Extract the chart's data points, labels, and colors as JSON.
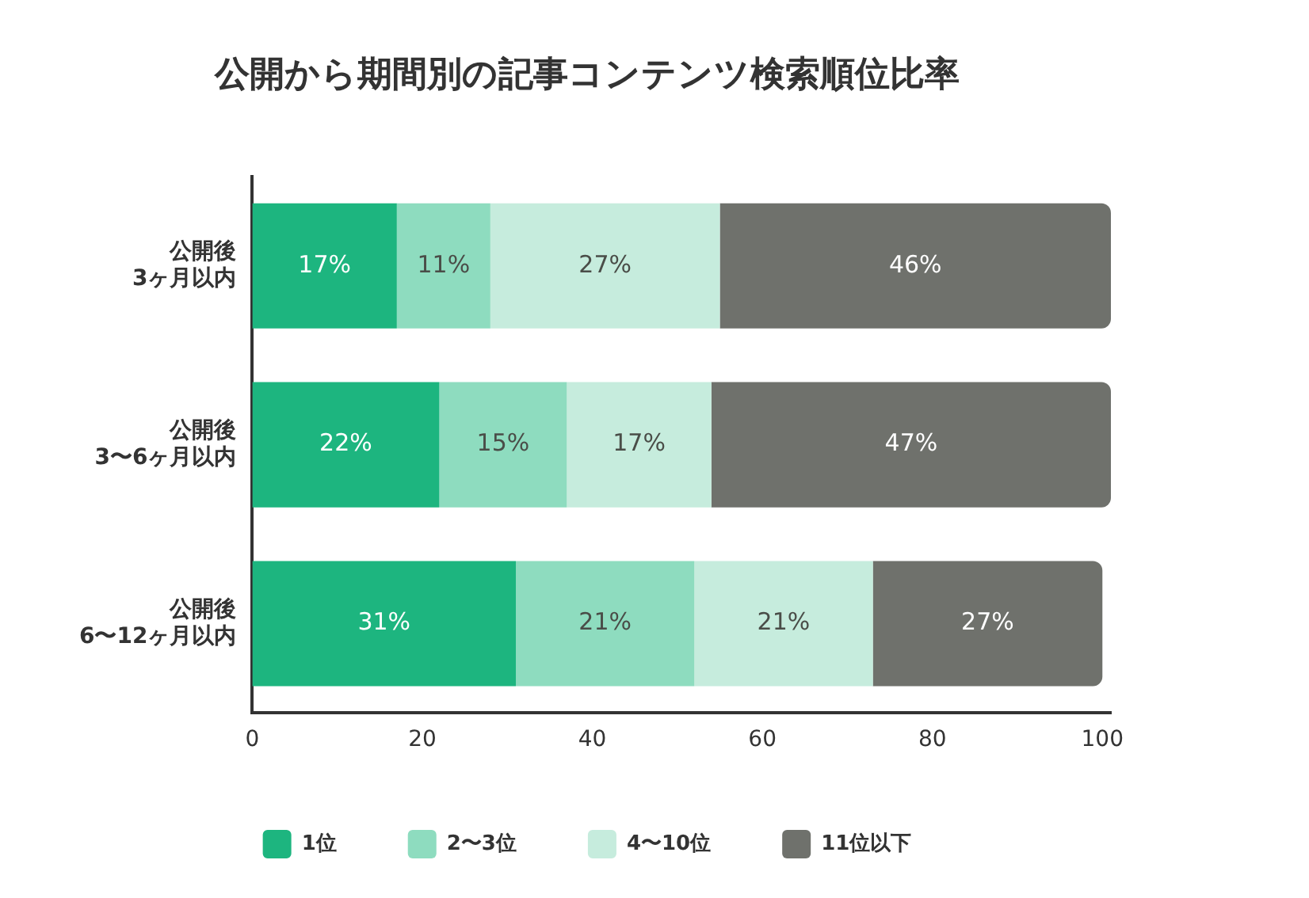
{
  "chart_data": {
    "type": "bar",
    "orientation": "horizontal",
    "stacked": true,
    "title": "公開から期間別の記事コンテンツ検索順位比率",
    "categories": [
      "公開後\n3ヶ月以内",
      "公開後\n3〜6ヶ月以内",
      "公開後\n6〜12ヶ月以内"
    ],
    "series": [
      {
        "name": "1位",
        "color": "#1db57f",
        "values": [
          17,
          22,
          31
        ],
        "value_labels": [
          "17%",
          "22%",
          "31%"
        ]
      },
      {
        "name": "2〜3位",
        "color": "#8edcbf",
        "values": [
          11,
          15,
          21
        ],
        "value_labels": [
          "11%",
          "15%",
          "21%"
        ]
      },
      {
        "name": "4〜10位",
        "color": "#c6ecdd",
        "values": [
          27,
          17,
          21
        ],
        "value_labels": [
          "27%",
          "17%",
          "21%"
        ]
      },
      {
        "name": "11位以下",
        "color": "#6f716c",
        "values": [
          46,
          47,
          27
        ],
        "value_labels": [
          "46%",
          "47%",
          "27%"
        ]
      }
    ],
    "xlim": [
      0,
      101
    ],
    "xticks": [
      0,
      20,
      40,
      60,
      80,
      100
    ],
    "grid": false,
    "legend": "bottom"
  }
}
